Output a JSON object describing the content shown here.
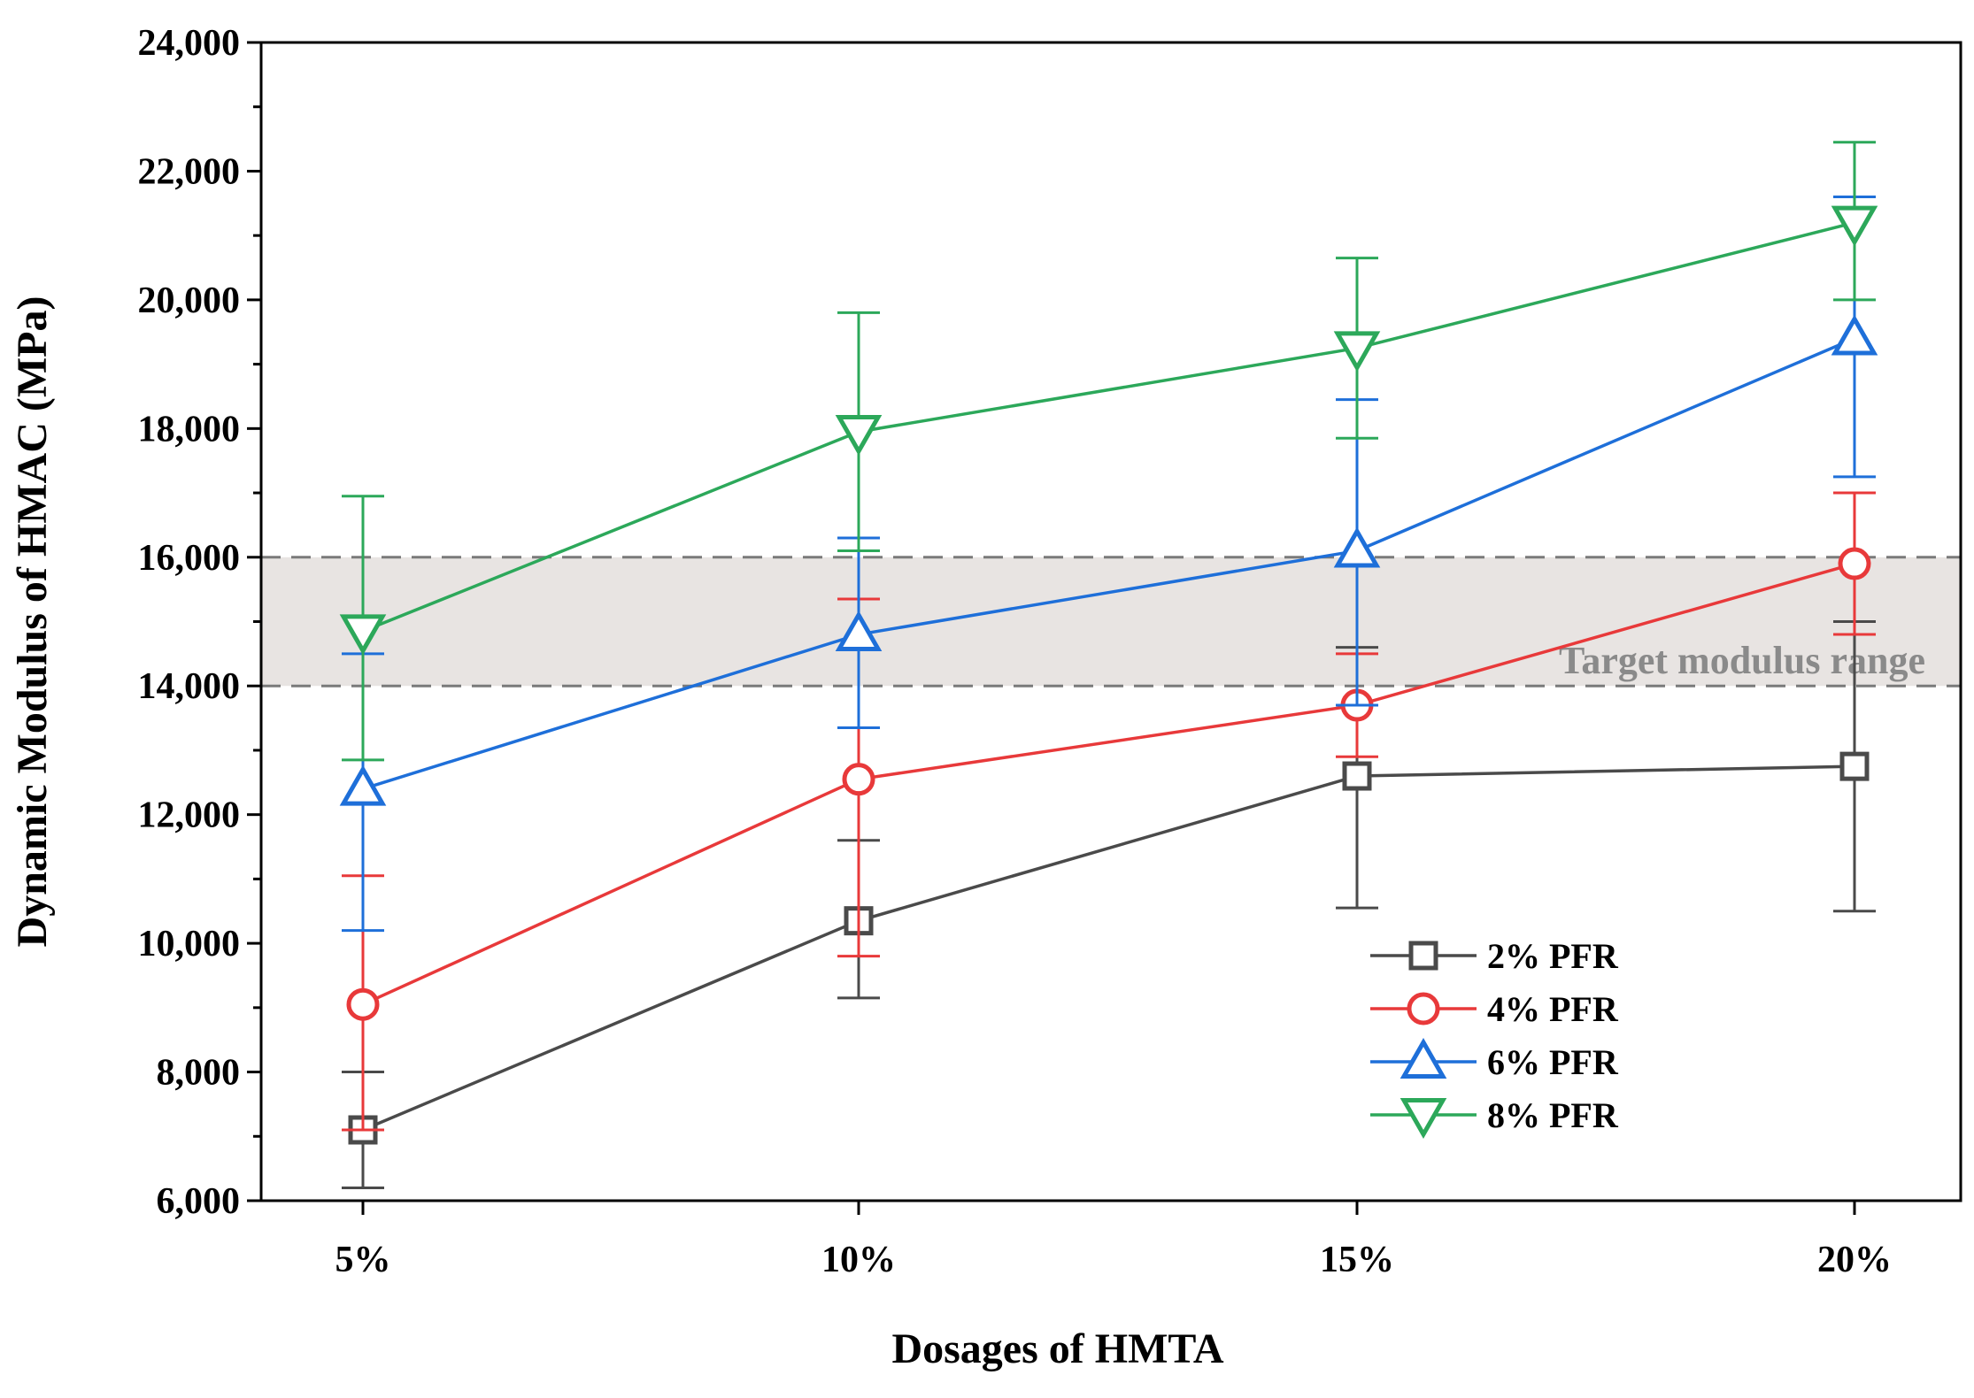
{
  "chart_data": {
    "type": "line",
    "xlabel": "Dosages of HMTA",
    "ylabel": "Dynamic Modulus of  HMAC  (MPa)",
    "categories": [
      "5%",
      "10%",
      "15%",
      "20%"
    ],
    "ylim": [
      6000,
      24000
    ],
    "yticks": [
      6000,
      8000,
      10000,
      12000,
      14000,
      16000,
      18000,
      20000,
      22000,
      24000
    ],
    "ytick_labels": [
      "6,000",
      "8,000",
      "10,000",
      "12,000",
      "14,000",
      "16,000",
      "18,000",
      "20,000",
      "22,000",
      "24,000"
    ],
    "grid": false,
    "legend_position": "lower-right",
    "band": {
      "low": 14000,
      "high": 16000,
      "label": "Target modulus range",
      "color": "#e8e4e2"
    },
    "series": [
      {
        "name": "2%  PFR",
        "color": "#4a4a4a",
        "marker": "square",
        "values": [
          7100,
          10350,
          12600,
          12750
        ],
        "err_low": [
          6200,
          9150,
          10550,
          10500
        ],
        "err_high": [
          8000,
          11600,
          14600,
          15000
        ]
      },
      {
        "name": "4%  PFR",
        "color": "#e8393a",
        "marker": "circle",
        "values": [
          9050,
          12550,
          13700,
          15900
        ],
        "err_low": [
          7100,
          9800,
          12900,
          14800
        ],
        "err_high": [
          11050,
          15350,
          14500,
          17000
        ]
      },
      {
        "name": "6%  PFR",
        "color": "#1e6fd9",
        "marker": "triangle-up",
        "values": [
          12400,
          14800,
          16100,
          19400
        ],
        "err_low": [
          10200,
          13350,
          13700,
          17250
        ],
        "err_high": [
          14500,
          16300,
          18450,
          21600
        ]
      },
      {
        "name": "8%  PFR",
        "color": "#2ca85a",
        "marker": "triangle-down",
        "values": [
          14850,
          17950,
          19250,
          21200
        ],
        "err_low": [
          12850,
          16100,
          17850,
          20000
        ],
        "err_high": [
          16950,
          19800,
          20650,
          22450
        ]
      }
    ]
  }
}
